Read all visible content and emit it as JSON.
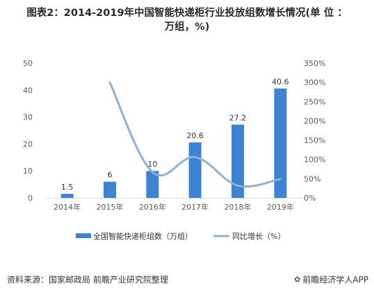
{
  "title_line1": "图表2：2014-2019年中国智能快递柜行业投放组数增长情况(单 位 ：",
  "title_line2": "万组，%)",
  "source": "资料来源：国家邮政局 前瞻产业研究院整理",
  "brand": "前瞻经济学人APP",
  "colors": {
    "bar": "#3c83d4",
    "line": "#92aed0",
    "axis_text": "#595959",
    "grid": "#d9d9d9"
  },
  "chart_data": {
    "type": "bar+line",
    "categories": [
      "2014年",
      "2015年",
      "2016年",
      "2017年",
      "2018年",
      "2019年"
    ],
    "series": [
      {
        "name": "全国智能快递柜组数（万组）",
        "type": "bar",
        "axis": "left",
        "values": [
          1.5,
          6,
          10,
          20.6,
          27.2,
          40.6
        ],
        "labels": [
          "1.5",
          "6",
          "10",
          "20.6",
          "27.2",
          "40.6"
        ]
      },
      {
        "name": "同比增长（%）",
        "type": "line",
        "axis": "right",
        "values": [
          null,
          300,
          67,
          106,
          32,
          49
        ]
      }
    ],
    "y_left": {
      "min": 0,
      "max": 50,
      "ticks": [
        "0",
        "10",
        "20",
        "30",
        "40",
        "50"
      ]
    },
    "y_right": {
      "min": 0,
      "max": 350,
      "ticks": [
        "0%",
        "50%",
        "100%",
        "150%",
        "200%",
        "250%",
        "300%",
        "350%"
      ]
    },
    "legend": "bottom",
    "grid": false
  }
}
